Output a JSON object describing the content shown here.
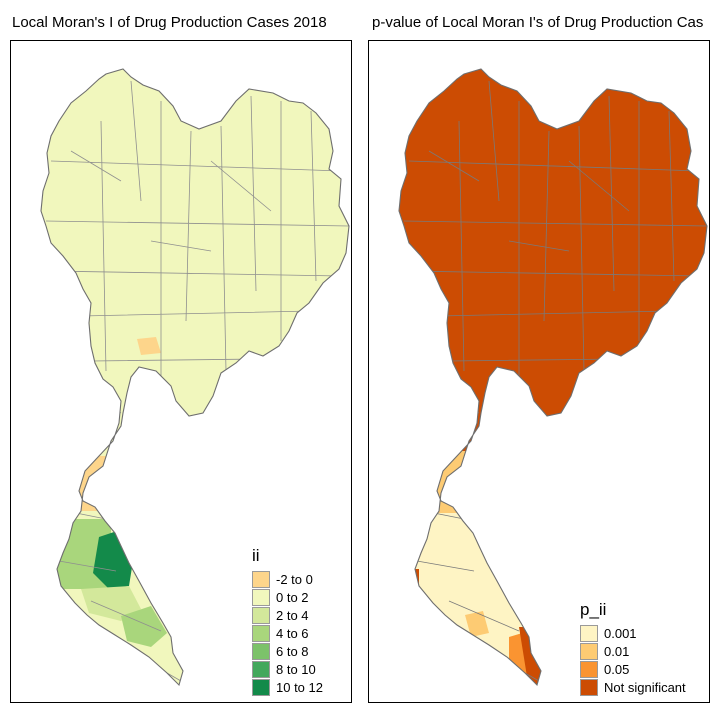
{
  "panels": [
    {
      "title": "Local Moran's I of Drug Production Cases 2018",
      "legend": {
        "title": "ii",
        "items": [
          {
            "label": "-2 to 0",
            "color": "#fdd58b"
          },
          {
            "label": "0 to 2",
            "color": "#f1f7bd"
          },
          {
            "label": "2 to 4",
            "color": "#d3e89b"
          },
          {
            "label": "4 to 6",
            "color": "#a9d67c"
          },
          {
            "label": "6 to 8",
            "color": "#7cc26a"
          },
          {
            "label": "8 to 10",
            "color": "#43a85c"
          },
          {
            "label": "10 to 12",
            "color": "#138a4a"
          }
        ]
      }
    },
    {
      "title": "p-value of Local Moran I's of Drug Production Cas",
      "legend": {
        "title": "p_ii",
        "items": [
          {
            "label": "0.001",
            "color": "#fef4c4"
          },
          {
            "label": "0.01",
            "color": "#fdcb73"
          },
          {
            "label": "0.05",
            "color": "#fa9431"
          },
          {
            "label": "Not significant",
            "color": "#cc4c03"
          }
        ]
      }
    }
  ]
}
